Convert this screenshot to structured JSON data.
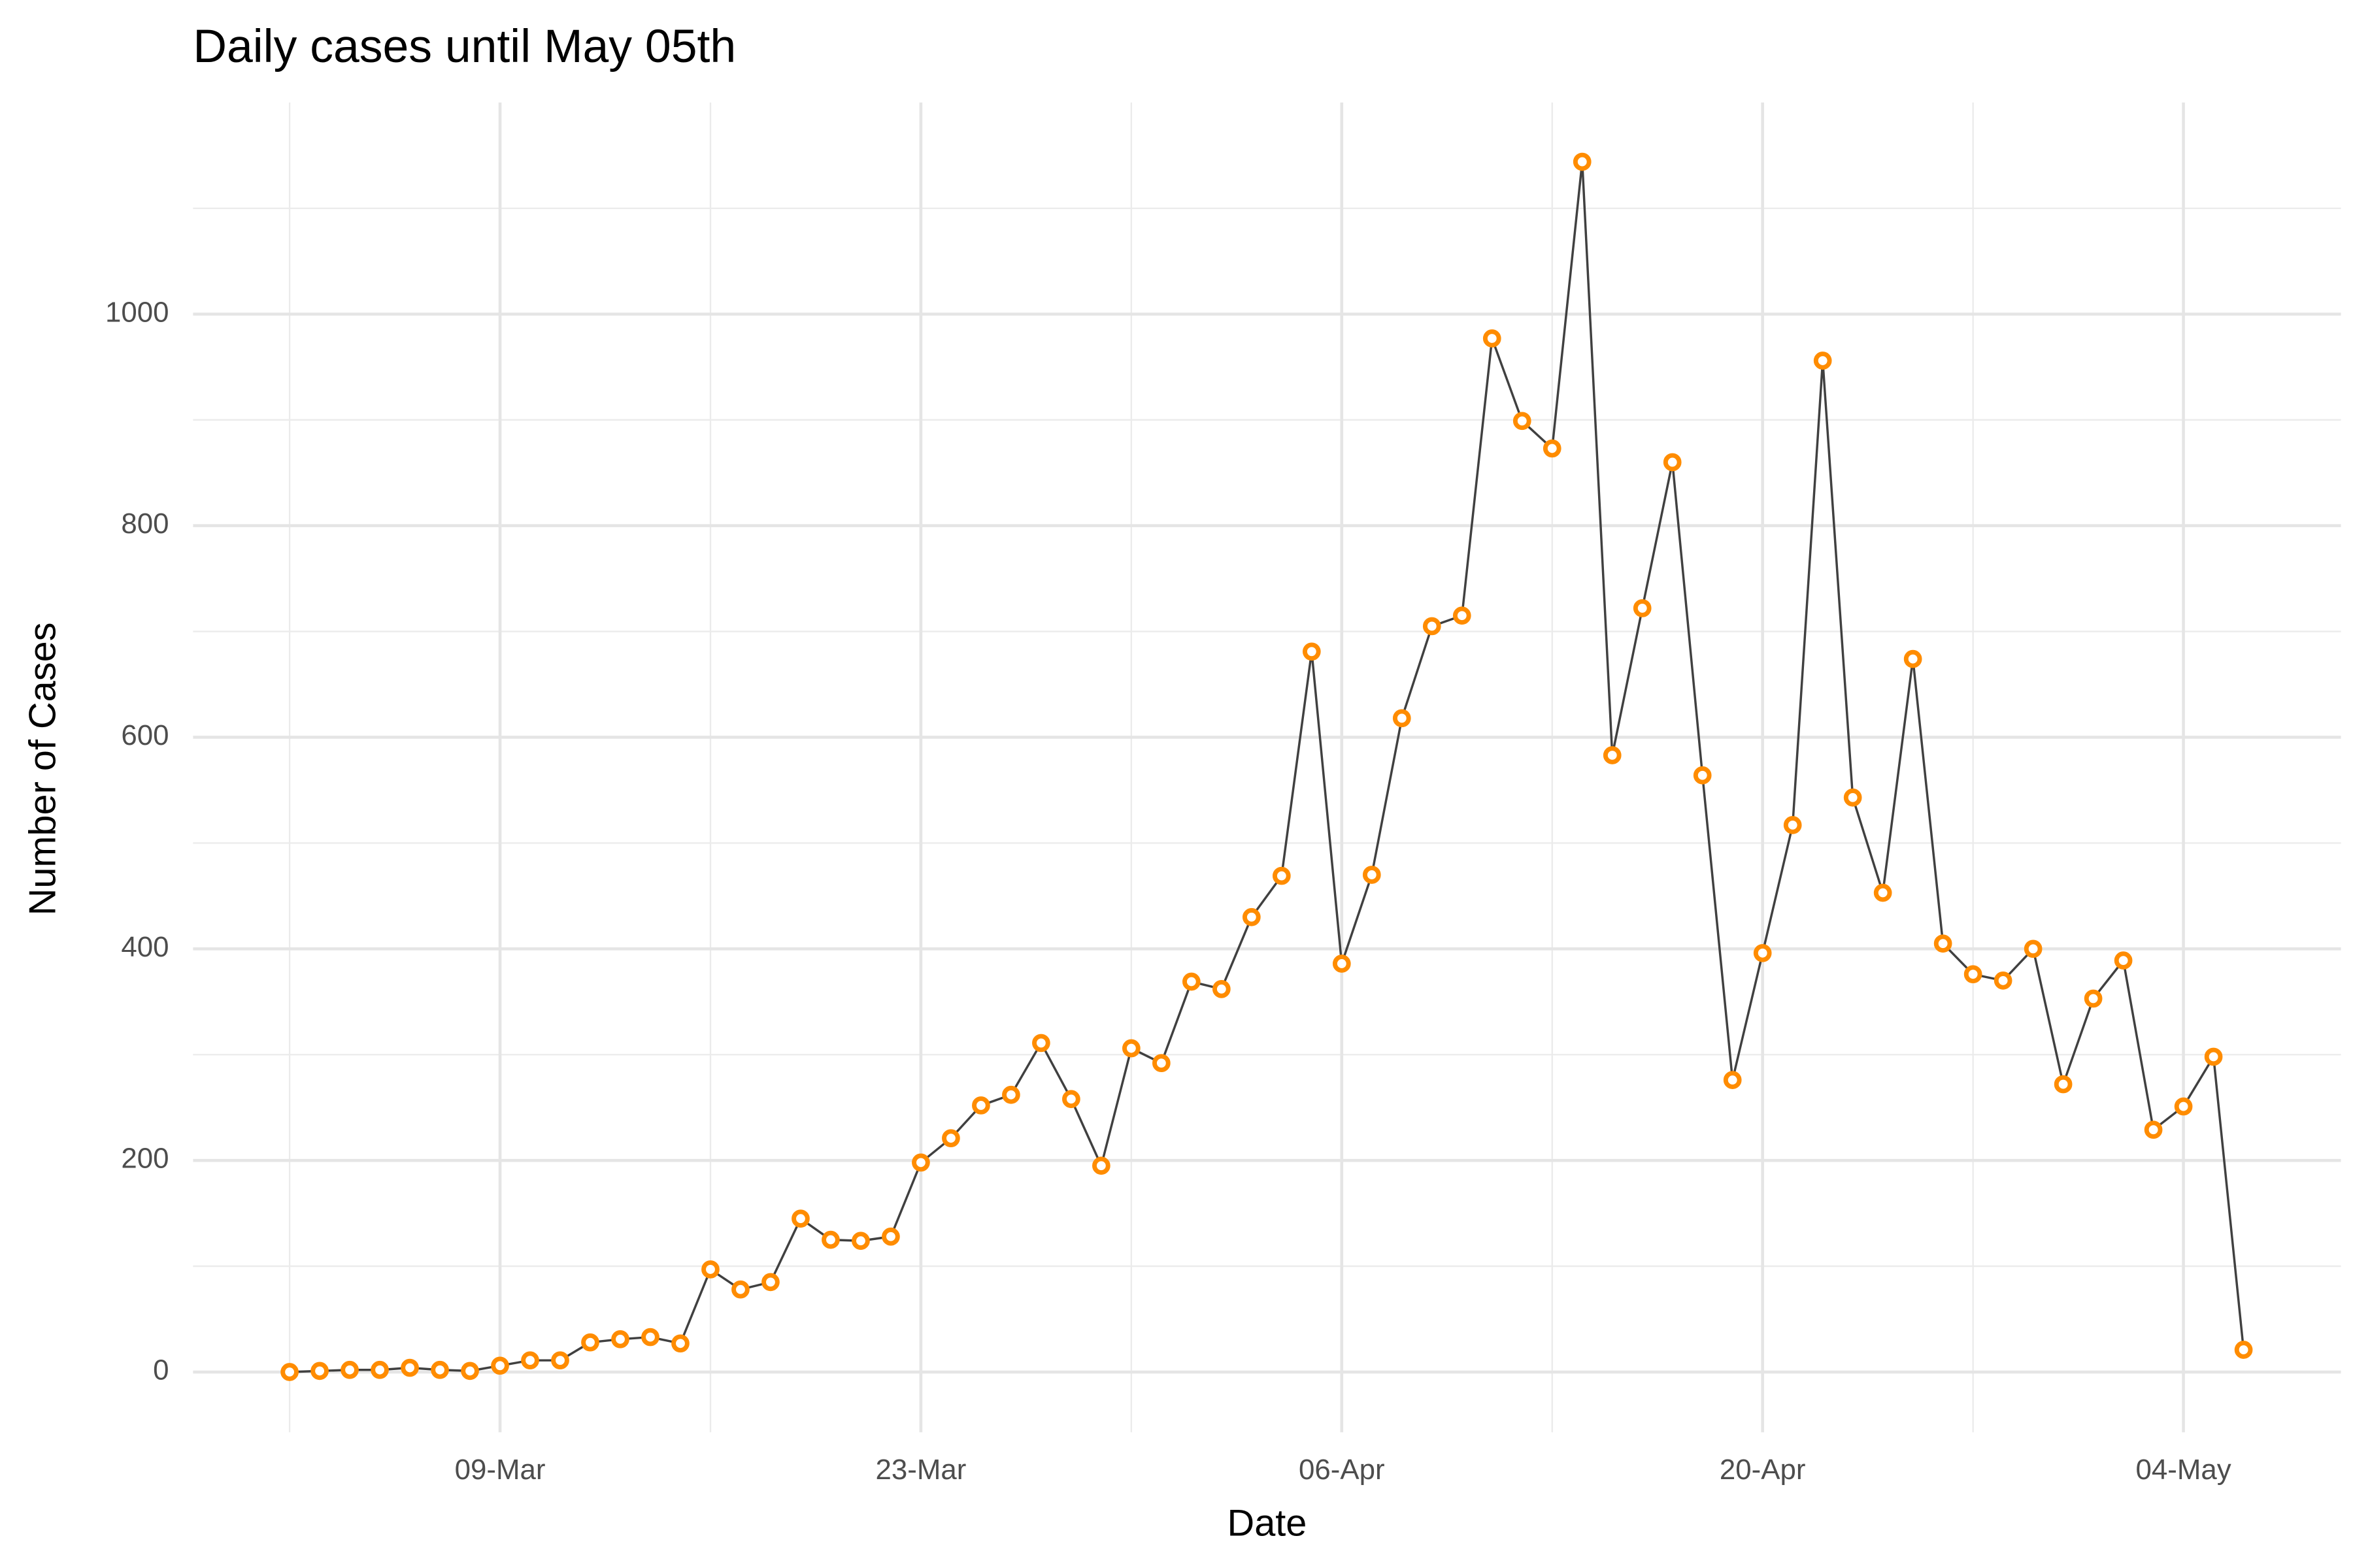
{
  "chart_data": {
    "type": "line",
    "title": "Daily cases until May 05th",
    "x_label": "Date",
    "y_label": "Number of Cases",
    "x": [
      "02-Mar",
      "03-Mar",
      "04-Mar",
      "05-Mar",
      "06-Mar",
      "07-Mar",
      "08-Mar",
      "09-Mar",
      "10-Mar",
      "11-Mar",
      "12-Mar",
      "13-Mar",
      "14-Mar",
      "15-Mar",
      "16-Mar",
      "17-Mar",
      "18-Mar",
      "19-Mar",
      "20-Mar",
      "21-Mar",
      "22-Mar",
      "23-Mar",
      "24-Mar",
      "25-Mar",
      "26-Mar",
      "27-Mar",
      "28-Mar",
      "29-Mar",
      "30-Mar",
      "31-Mar",
      "01-Apr",
      "02-Apr",
      "03-Apr",
      "04-Apr",
      "05-Apr",
      "06-Apr",
      "07-Apr",
      "08-Apr",
      "09-Apr",
      "10-Apr",
      "11-Apr",
      "12-Apr",
      "13-Apr",
      "14-Apr",
      "15-Apr",
      "16-Apr",
      "17-Apr",
      "18-Apr",
      "19-Apr",
      "20-Apr",
      "21-Apr",
      "22-Apr",
      "23-Apr",
      "24-Apr",
      "25-Apr",
      "26-Apr",
      "27-Apr",
      "28-Apr",
      "29-Apr",
      "30-Apr",
      "01-May",
      "02-May",
      "03-May",
      "04-May",
      "05-May",
      "06-May"
    ],
    "series": [
      {
        "name": "cases",
        "color": "#404040",
        "marker_color": "#ff8c00",
        "values": [
          0,
          1,
          2,
          2,
          4,
          2,
          1,
          6,
          11,
          11,
          28,
          31,
          33,
          27,
          97,
          78,
          85,
          145,
          125,
          124,
          128,
          198,
          221,
          252,
          262,
          311,
          258,
          195,
          306,
          292,
          369,
          362,
          430,
          469,
          681,
          386,
          470,
          618,
          705,
          715,
          977,
          899,
          873,
          1144,
          583,
          722,
          860,
          564,
          276,
          396,
          517,
          956,
          543,
          453,
          674,
          405,
          376,
          370,
          400,
          272,
          353,
          389,
          229,
          251,
          298,
          21
        ]
      }
    ],
    "xticks": [
      "09-Mar",
      "23-Mar",
      "06-Apr",
      "20-Apr",
      "04-May"
    ],
    "xticks_minor": [
      "02-Mar",
      "16-Mar",
      "30-Mar",
      "13-Apr",
      "27-Apr"
    ],
    "ylim": [
      -57,
      1200
    ],
    "yticks": [
      0,
      200,
      400,
      600,
      800,
      1000
    ],
    "yticks_minor": [
      100,
      300,
      500,
      700,
      900,
      1100
    ],
    "grid": true
  }
}
